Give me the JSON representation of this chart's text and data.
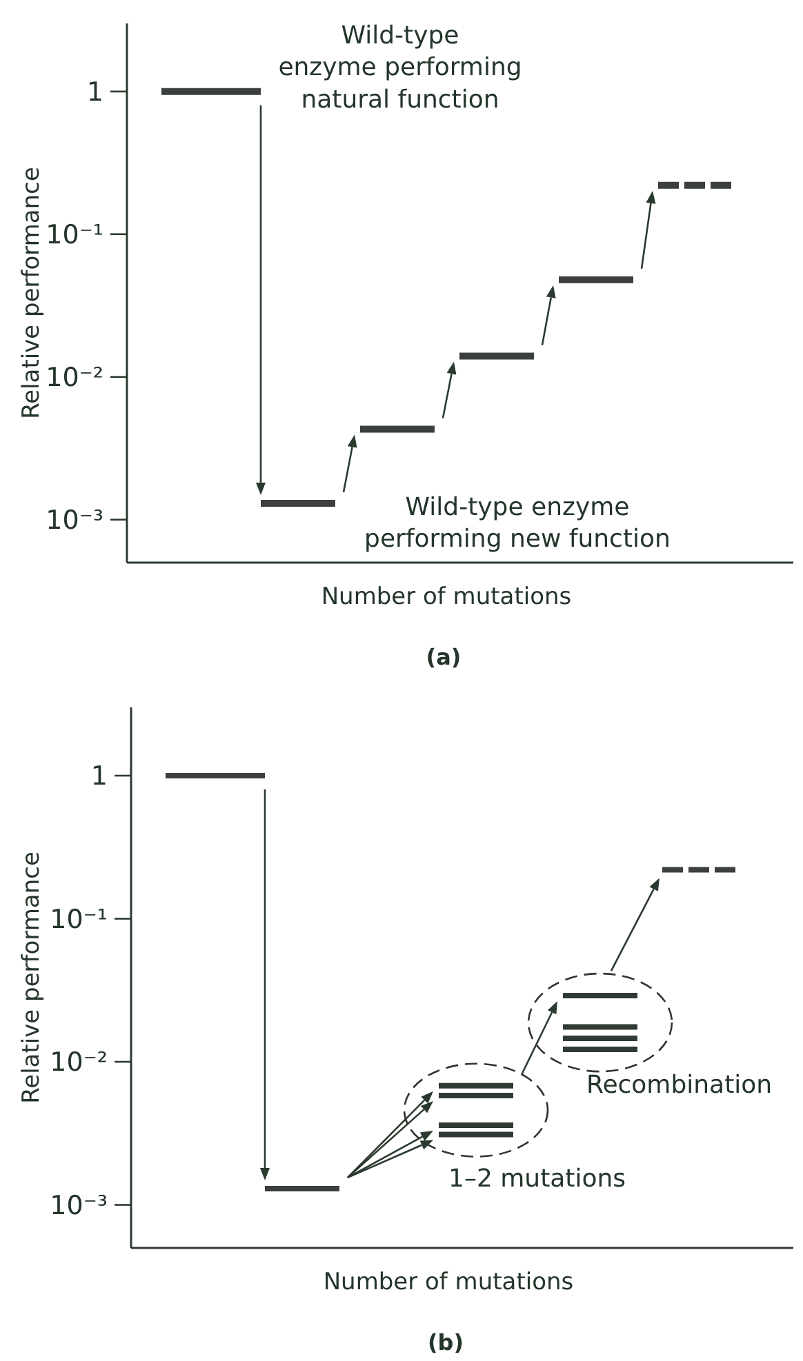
{
  "chart_data": [
    {
      "type": "line",
      "title": "(a)",
      "xlabel": "Number of mutations",
      "ylabel": "Relative performance",
      "log": "y",
      "ylim": [
        0.0005,
        3
      ],
      "yticks": [
        {
          "value": 1,
          "label": "1"
        },
        {
          "value": 0.1,
          "label": "10⁻¹"
        },
        {
          "value": 0.01,
          "label": "10⁻²"
        },
        {
          "value": 0.001,
          "label": "10⁻³"
        }
      ],
      "tick_labels": "y",
      "grid": false,
      "marker": "none",
      "line_style": "solid",
      "categories": [
        null,
        null,
        null,
        null,
        null,
        null,
        null,
        null,
        null,
        null,
        null,
        null,
        null,
        null,
        null,
        null,
        null,
        null,
        null,
        null,
        null,
        null,
        null,
        null,
        null,
        null,
        null
      ],
      "annotations": [
        "Wild-type\nenzyme performing\nnatural function",
        "Wild-type enzyme\nperforming new function"
      ],
      "series": [
        {
          "color": "#3b403d",
          "values": [
            null,
            1,
            1,
            1,
            1,
            1,
            null,
            null,
            null,
            null,
            null,
            null,
            null,
            null,
            null,
            null,
            null,
            null,
            null,
            null,
            null,
            null,
            null,
            null,
            null,
            null,
            null
          ]
        },
        {
          "color": "#3b403d",
          "values": [
            null,
            null,
            null,
            null,
            null,
            0.0013,
            0.0013,
            0.0013,
            0.0013,
            null,
            null,
            null,
            null,
            null,
            null,
            null,
            null,
            null,
            null,
            null,
            null,
            null,
            null,
            null,
            null,
            null,
            null
          ]
        },
        {
          "color": "#3b403d",
          "values": [
            null,
            null,
            null,
            null,
            null,
            null,
            null,
            null,
            null,
            0.0043,
            0.0043,
            0.0043,
            0.0043,
            null,
            null,
            null,
            null,
            null,
            null,
            null,
            null,
            null,
            null,
            null,
            null,
            null,
            null
          ]
        },
        {
          "color": "#3b403d",
          "values": [
            null,
            null,
            null,
            null,
            null,
            null,
            null,
            null,
            null,
            null,
            null,
            null,
            null,
            0.014,
            0.014,
            0.014,
            0.014,
            null,
            null,
            null,
            null,
            null,
            null,
            null,
            null,
            null,
            null
          ]
        },
        {
          "color": "#3b403d",
          "values": [
            null,
            null,
            null,
            null,
            null,
            null,
            null,
            null,
            null,
            null,
            null,
            null,
            null,
            null,
            null,
            null,
            null,
            0.048,
            0.048,
            0.048,
            0.048,
            null,
            null,
            null,
            null,
            null,
            null
          ]
        },
        {
          "color": "#3b403d",
          "line_style": "dashed",
          "values": [
            null,
            null,
            null,
            null,
            null,
            null,
            null,
            null,
            null,
            null,
            null,
            null,
            null,
            null,
            null,
            null,
            null,
            null,
            null,
            null,
            null,
            0.22,
            0.22,
            0.22,
            0.22,
            null,
            null
          ]
        }
      ]
    },
    {
      "type": "line",
      "title": "(b)",
      "xlabel": "Number of mutations",
      "ylabel": "Relative performance",
      "log": "y",
      "ylim": [
        0.0005,
        3
      ],
      "yticks": [
        {
          "value": 1,
          "label": "1"
        },
        {
          "value": 0.1,
          "label": "10⁻¹"
        },
        {
          "value": 0.01,
          "label": "10⁻²"
        },
        {
          "value": 0.001,
          "label": "10⁻³"
        }
      ],
      "tick_labels": "y",
      "grid": false,
      "marker": "none",
      "line_style": "solid",
      "categories": [
        null,
        null,
        null,
        null,
        null,
        null,
        null,
        null,
        null,
        null,
        null,
        null,
        null,
        null,
        null,
        null,
        null,
        null,
        null,
        null,
        null,
        null,
        null,
        null,
        null,
        null,
        null
      ],
      "annotations": [
        "Recombination",
        "1–2 mutations"
      ],
      "series": [
        {
          "color": "#3b403d",
          "values": [
            null,
            1,
            1,
            1,
            1,
            1,
            null,
            null,
            null,
            null,
            null,
            null,
            null,
            null,
            null,
            null,
            null,
            null,
            null,
            null,
            null,
            null,
            null,
            null,
            null,
            null,
            null
          ]
        },
        {
          "color": "#3b403d",
          "values": [
            null,
            null,
            null,
            null,
            null,
            0.0013,
            0.0013,
            0.0013,
            0.0013,
            null,
            null,
            null,
            null,
            null,
            null,
            null,
            null,
            null,
            null,
            null,
            null,
            null,
            null,
            null,
            null,
            null,
            null
          ]
        },
        {
          "color": "#2f3a33",
          "values": [
            null,
            null,
            null,
            null,
            null,
            null,
            null,
            null,
            null,
            null,
            null,
            null,
            0.0068,
            0.0068,
            0.0068,
            0.0068,
            null,
            null,
            null,
            null,
            null,
            null,
            null,
            null,
            null,
            null,
            null
          ]
        },
        {
          "color": "#2f3a33",
          "values": [
            null,
            null,
            null,
            null,
            null,
            null,
            null,
            null,
            null,
            null,
            null,
            null,
            0.0058,
            0.0058,
            0.0058,
            0.0058,
            null,
            null,
            null,
            null,
            null,
            null,
            null,
            null,
            null,
            null,
            null
          ]
        },
        {
          "color": "#2f3a33",
          "values": [
            null,
            null,
            null,
            null,
            null,
            null,
            null,
            null,
            null,
            null,
            null,
            null,
            0.0036,
            0.0036,
            0.0036,
            0.0036,
            null,
            null,
            null,
            null,
            null,
            null,
            null,
            null,
            null,
            null,
            null
          ]
        },
        {
          "color": "#2f3a33",
          "values": [
            null,
            null,
            null,
            null,
            null,
            null,
            null,
            null,
            null,
            null,
            null,
            null,
            0.0031,
            0.0031,
            0.0031,
            0.0031,
            null,
            null,
            null,
            null,
            null,
            null,
            null,
            null,
            null,
            null,
            null
          ]
        },
        {
          "color": "#2f3a33",
          "values": [
            null,
            null,
            null,
            null,
            null,
            null,
            null,
            null,
            null,
            null,
            null,
            null,
            null,
            null,
            null,
            null,
            null,
            0.029,
            0.029,
            0.029,
            0.029,
            null,
            null,
            null,
            null,
            null,
            null
          ]
        },
        {
          "color": "#2f3a33",
          "values": [
            null,
            null,
            null,
            null,
            null,
            null,
            null,
            null,
            null,
            null,
            null,
            null,
            null,
            null,
            null,
            null,
            null,
            0.0175,
            0.0175,
            0.0175,
            0.0175,
            null,
            null,
            null,
            null,
            null,
            null
          ]
        },
        {
          "color": "#2f3a33",
          "values": [
            null,
            null,
            null,
            null,
            null,
            null,
            null,
            null,
            null,
            null,
            null,
            null,
            null,
            null,
            null,
            null,
            null,
            0.0146,
            0.0146,
            0.0146,
            0.0146,
            null,
            null,
            null,
            null,
            null,
            null
          ]
        },
        {
          "color": "#2f3a33",
          "values": [
            null,
            null,
            null,
            null,
            null,
            null,
            null,
            null,
            null,
            null,
            null,
            null,
            null,
            null,
            null,
            null,
            null,
            0.0122,
            0.0122,
            0.0122,
            0.0122,
            null,
            null,
            null,
            null,
            null,
            null
          ]
        },
        {
          "color": "#3b403d",
          "line_style": "dashed",
          "values": [
            null,
            null,
            null,
            null,
            null,
            null,
            null,
            null,
            null,
            null,
            null,
            null,
            null,
            null,
            null,
            null,
            null,
            null,
            null,
            null,
            null,
            0.22,
            0.22,
            0.22,
            0.22,
            null,
            null
          ]
        }
      ]
    }
  ]
}
